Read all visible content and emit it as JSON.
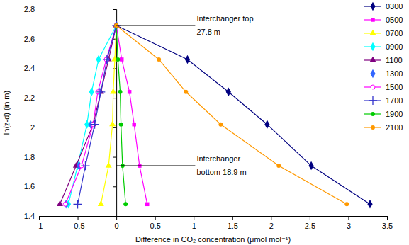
{
  "chart_data": {
    "type": "line",
    "x_label": "Difference in CO₂ concentration (μmol mol⁻¹)",
    "y_label": "ln(z-d)  (in m)",
    "xlim": [
      -1,
      3.5
    ],
    "xticks": [
      -1,
      -0.5,
      0,
      0.5,
      1,
      1.5,
      2,
      2.5,
      3,
      3.5
    ],
    "ylim": [
      1.4,
      2.8
    ],
    "yticks": [
      1.4,
      1.6,
      1.8,
      2,
      2.2,
      2.4,
      2.6,
      2.8
    ],
    "grid": false,
    "legend": "top-right",
    "series": [
      {
        "name": "0300",
        "color": "#000080",
        "marker": "diamond",
        "line_style": "solid",
        "x": [
          0,
          0.92,
          1.45,
          1.95,
          2.52,
          3.28
        ],
        "values": [
          2.69,
          2.46,
          2.24,
          2.02,
          1.74,
          1.48
        ]
      },
      {
        "name": "0500",
        "color": "#FF00FF",
        "marker": "square",
        "line_style": "solid",
        "x": [
          0,
          0.07,
          0.17,
          0.23,
          0.3,
          0.4
        ],
        "values": [
          2.69,
          2.46,
          2.24,
          2.02,
          1.74,
          1.48
        ]
      },
      {
        "name": "0700",
        "color": "#FFFF00",
        "marker": "triangle",
        "line_style": "solid",
        "x": [
          0,
          -0.02,
          -0.04,
          -0.05,
          -0.1,
          -0.2
        ],
        "values": [
          2.69,
          2.46,
          2.24,
          2.02,
          1.74,
          1.48
        ]
      },
      {
        "name": "0900",
        "color": "#00FFFF",
        "marker": "diamond",
        "line_style": "solid",
        "x": [
          0,
          -0.23,
          -0.32,
          -0.38,
          -0.5,
          -0.62
        ],
        "values": [
          2.69,
          2.46,
          2.24,
          2.02,
          1.74,
          1.48
        ]
      },
      {
        "name": "1100",
        "color": "#800080",
        "marker": "triangle",
        "line_style": "solid",
        "x": [
          0,
          -0.1,
          -0.2,
          -0.3,
          -0.52,
          -0.73
        ],
        "values": [
          2.69,
          2.46,
          2.24,
          2.02,
          1.74,
          1.48
        ]
      },
      {
        "name": "1300",
        "color": "#3366FF",
        "marker": "diamond",
        "line_style": "none",
        "x": [
          0,
          -0.12,
          -0.22,
          -0.33,
          -0.48,
          -0.65
        ],
        "values": [
          2.69,
          2.46,
          2.24,
          2.02,
          1.74,
          1.48
        ]
      },
      {
        "name": "1500",
        "color": "#FF00FF",
        "marker": "open_circle",
        "line_style": "solid",
        "x": [
          0,
          -0.13,
          -0.24,
          -0.3,
          -0.45,
          -0.66
        ],
        "values": [
          2.69,
          2.46,
          2.24,
          2.02,
          1.74,
          1.48
        ]
      },
      {
        "name": "1700",
        "color": "#3333CC",
        "marker": "plus",
        "line_style": "solid",
        "x": [
          0,
          -0.12,
          -0.2,
          -0.28,
          -0.4,
          -0.5
        ],
        "values": [
          2.69,
          2.46,
          2.24,
          2.02,
          1.74,
          1.48
        ]
      },
      {
        "name": "1900",
        "color": "#00CC00",
        "marker": "circle",
        "line_style": "solid",
        "x": [
          0,
          0.02,
          0.05,
          0.06,
          0.08,
          0.12
        ],
        "values": [
          2.69,
          2.46,
          2.24,
          2.02,
          1.74,
          1.48
        ]
      },
      {
        "name": "2100",
        "color": "#FF9900",
        "marker": "circle",
        "line_style": "solid",
        "x": [
          0,
          0.55,
          0.9,
          1.35,
          2.1,
          2.98
        ],
        "values": [
          2.69,
          2.46,
          2.24,
          2.02,
          1.74,
          1.48
        ]
      }
    ],
    "annotations": [
      {
        "text": [
          "Interchanger top",
          "27.8 m"
        ],
        "x": [
          0,
          1.02
        ],
        "y": 2.69
      },
      {
        "text": [
          "Interchanger",
          "bottom  18.9 m"
        ],
        "x": [
          0,
          1.02
        ],
        "y": 1.74
      }
    ]
  }
}
